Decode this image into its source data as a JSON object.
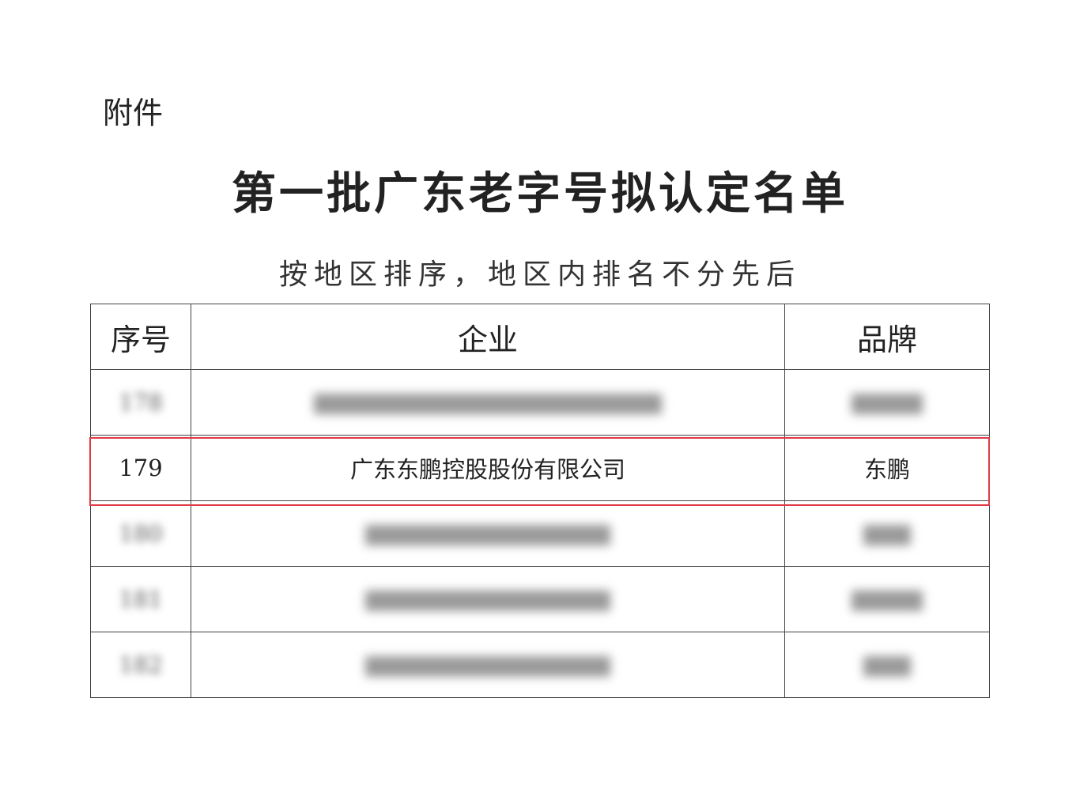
{
  "attachment_label": "附件",
  "title": "第一批广东老字号拟认定名单",
  "subtitle": "按地区排序，地区内排名不分先后",
  "table": {
    "headers": [
      "序号",
      "企业",
      "品牌"
    ],
    "rows": [
      {
        "no": "178",
        "company": "",
        "brand": "",
        "blurred": true
      },
      {
        "no": "179",
        "company": "广东东鹏控股股份有限公司",
        "brand": "东鹏",
        "blurred": false,
        "highlighted": true
      },
      {
        "no": "180",
        "company": "",
        "brand": "",
        "blurred": true
      },
      {
        "no": "181",
        "company": "",
        "brand": "",
        "blurred": true
      },
      {
        "no": "182",
        "company": "",
        "brand": "",
        "blurred": true
      }
    ]
  },
  "highlight_color": "#e03a45"
}
